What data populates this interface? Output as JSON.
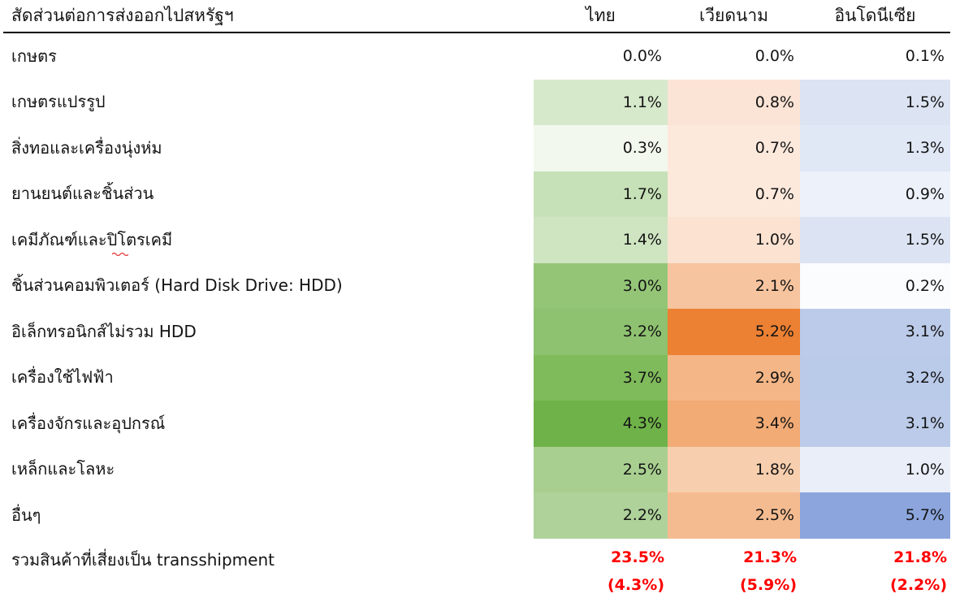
{
  "table": {
    "title": "สัดส่วนต่อการส่งออกไปสหรัฐฯ",
    "columns": [
      "ไทย",
      "เวียดนาม",
      "อินโดนีเซีย"
    ],
    "rows": [
      {
        "label": "เกษตร",
        "values": [
          "0.0%",
          "0.0%",
          "0.1%"
        ],
        "colors": [
          "#ffffff",
          "#ffffff",
          "#ffffff"
        ]
      },
      {
        "label": "เกษตรแปรรูป",
        "values": [
          "1.1%",
          "0.8%",
          "1.5%"
        ],
        "colors": [
          "#d7e9cb",
          "#fbe4d5",
          "#dce4f3"
        ]
      },
      {
        "label": "สิ่งทอและเครื่องนุ่งห่ม",
        "values": [
          "0.3%",
          "0.7%",
          "1.3%"
        ],
        "colors": [
          "#f3f8ef",
          "#fce9dc",
          "#e0e7f5"
        ]
      },
      {
        "label": "ยานยนต์และชิ้นส่วน",
        "values": [
          "1.7%",
          "0.7%",
          "0.9%"
        ],
        "colors": [
          "#c6e1b7",
          "#fce9dc",
          "#ecf1fa"
        ]
      },
      {
        "label": "เคมีภัณฑ์และปิโตรเคมี",
        "values": [
          "1.4%",
          "1.0%",
          "1.5%"
        ],
        "colors": [
          "#cfe5c2",
          "#fbe2d1",
          "#dce4f3"
        ],
        "spellcheck_marker": true
      },
      {
        "label": "ชิ้นส่วนคอมพิวเตอร์ (Hard Disk Drive: HDD)",
        "values": [
          "3.0%",
          "2.1%",
          "0.2%"
        ],
        "colors": [
          "#94c577",
          "#f6c49f",
          "#fbfcfe"
        ]
      },
      {
        "label": "อิเล็กทรอนิกส์ไม่รวม HDD",
        "values": [
          "3.2%",
          "5.2%",
          "3.1%"
        ],
        "colors": [
          "#8fc270",
          "#ec8033",
          "#bccbe9"
        ]
      },
      {
        "label": "เครื่องใช้ไฟฟ้า",
        "values": [
          "3.7%",
          "2.9%",
          "3.2%"
        ],
        "colors": [
          "#7fba5b",
          "#f4b686",
          "#bacae9"
        ]
      },
      {
        "label": "เครื่องจักรและอุปกรณ์",
        "values": [
          "4.3%",
          "3.4%",
          "3.1%"
        ],
        "colors": [
          "#6fb249",
          "#f2ab75",
          "#bccbe9"
        ]
      },
      {
        "label": "เหล็กและโลหะ",
        "values": [
          "2.5%",
          "1.8%",
          "1.0%"
        ],
        "colors": [
          "#a8cf90",
          "#f8cfae",
          "#e9eef8"
        ]
      },
      {
        "label": "อื่นๆ",
        "values": [
          "2.2%",
          "2.5%",
          "5.7%"
        ],
        "colors": [
          "#aed29a",
          "#f5bb90",
          "#8ca5dd"
        ]
      }
    ],
    "summary": {
      "label": "รวมสินค้าที่เสี่ยงเป็น transshipment",
      "values": [
        "23.5%",
        "21.3%",
        "21.8%"
      ],
      "sub_values": [
        "(4.3%)",
        "(5.9%)",
        "(2.2%)"
      ],
      "text_color": "#fe0000"
    },
    "spellcheck_color": "#e03a3a"
  },
  "chart_data": {
    "type": "heatmap",
    "title": "สัดส่วนต่อการส่งออกไปสหรัฐฯ",
    "unit": "%",
    "categories": [
      "เกษตร",
      "เกษตรแปรรูป",
      "สิ่งทอและเครื่องนุ่งห่ม",
      "ยานยนต์และชิ้นส่วน",
      "เคมีภัณฑ์และปิโตรเคมี",
      "ชิ้นส่วนคอมพิวเตอร์ (Hard Disk Drive: HDD)",
      "อิเล็กทรอนิกส์ไม่รวม HDD",
      "เครื่องใช้ไฟฟ้า",
      "เครื่องจักรและอุปกรณ์",
      "เหล็กและโลหะ",
      "อื่นๆ"
    ],
    "series": [
      {
        "name": "ไทย",
        "values": [
          0.0,
          1.1,
          0.3,
          1.7,
          1.4,
          3.0,
          3.2,
          3.7,
          4.3,
          2.5,
          2.2
        ],
        "scale_max_color": "#6fb249"
      },
      {
        "name": "เวียดนาม",
        "values": [
          0.0,
          0.8,
          0.7,
          0.7,
          1.0,
          2.1,
          5.2,
          2.9,
          3.4,
          1.8,
          2.5
        ],
        "scale_max_color": "#ec8033"
      },
      {
        "name": "อินโดนีเซีย",
        "values": [
          0.1,
          1.5,
          1.3,
          0.9,
          1.5,
          0.2,
          3.1,
          3.2,
          3.1,
          1.0,
          5.7
        ],
        "scale_max_color": "#8ca5dd"
      }
    ],
    "total_row": {
      "label": "รวมสินค้าที่เสี่ยงเป็น transshipment",
      "totals": [
        23.5,
        21.3,
        21.8
      ],
      "totals_in_parentheses": [
        4.3,
        5.9,
        2.2
      ],
      "color": "#fe0000"
    },
    "layout": {
      "legend": false,
      "grid": false,
      "color_scale": "white-to-color per column"
    }
  }
}
